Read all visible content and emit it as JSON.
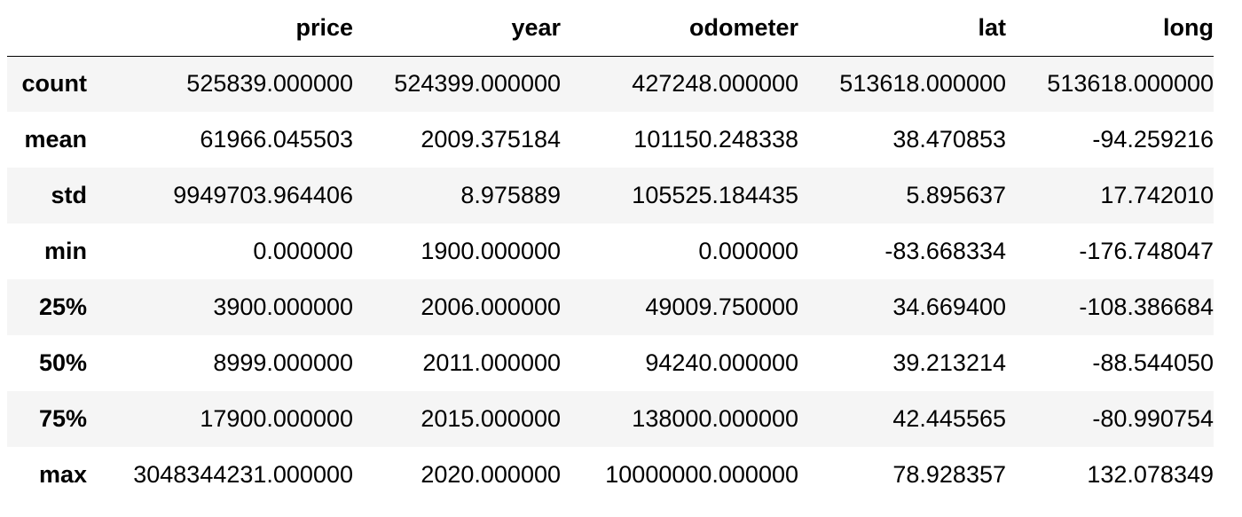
{
  "table": {
    "index_header": "",
    "columns": [
      "price",
      "year",
      "odometer",
      "lat",
      "long"
    ],
    "rows": [
      {
        "label": "count",
        "values": [
          "525839.000000",
          "524399.000000",
          "427248.000000",
          "513618.000000",
          "513618.000000"
        ]
      },
      {
        "label": "mean",
        "values": [
          "61966.045503",
          "2009.375184",
          "101150.248338",
          "38.470853",
          "-94.259216"
        ]
      },
      {
        "label": "std",
        "values": [
          "9949703.964406",
          "8.975889",
          "105525.184435",
          "5.895637",
          "17.742010"
        ]
      },
      {
        "label": "min",
        "values": [
          "0.000000",
          "1900.000000",
          "0.000000",
          "-83.668334",
          "-176.748047"
        ]
      },
      {
        "label": "25%",
        "values": [
          "3900.000000",
          "2006.000000",
          "49009.750000",
          "34.669400",
          "-108.386684"
        ]
      },
      {
        "label": "50%",
        "values": [
          "8999.000000",
          "2011.000000",
          "94240.000000",
          "39.213214",
          "-88.544050"
        ]
      },
      {
        "label": "75%",
        "values": [
          "17900.000000",
          "2015.000000",
          "138000.000000",
          "42.445565",
          "-80.990754"
        ]
      },
      {
        "label": "max",
        "values": [
          "3048344231.000000",
          "2020.000000",
          "10000000.000000",
          "78.928357",
          "132.078349"
        ]
      }
    ]
  },
  "colors": {
    "stripe": "#f5f5f5",
    "background": "#ffffff",
    "text": "#000000"
  }
}
